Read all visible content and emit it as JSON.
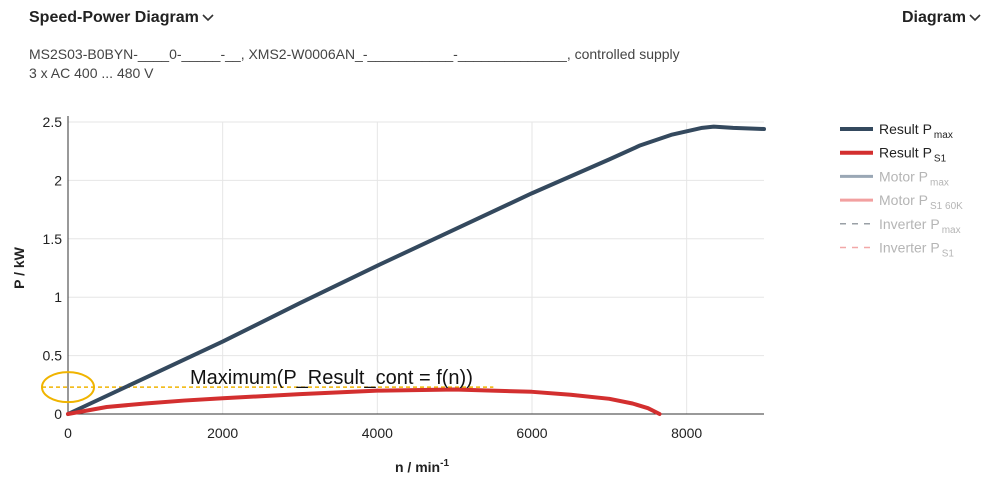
{
  "header": {
    "title": "Speed-Power Diagram",
    "right_label": "Diagram",
    "subtitle_line1": "MS2S03-B0BYN-____0-_____-__, XMS2-W0006AN_-___________-______________, controlled supply",
    "subtitle_line2": "3 x AC 400 ... 480 V"
  },
  "icons": {
    "dropdown": "chevron-down-icon"
  },
  "colors": {
    "result_pmax": "#34495e",
    "result_ps1": "#d32f2f",
    "motor_pmax": "#9aa7b5",
    "motor_ps1": "#f2a0a0",
    "inverter_pmax": "#9aa0a6",
    "inverter_ps1": "#f2a8a8",
    "annotation": "#f0b400"
  },
  "chart_data": {
    "type": "line",
    "xlabel": "n / min",
    "xlabel_sup": "-1",
    "ylabel": "P / kW",
    "xlim": [
      0,
      9000
    ],
    "ylim": [
      0,
      2.5
    ],
    "xticks": [
      0,
      2000,
      4000,
      6000,
      8000
    ],
    "yticks": [
      0,
      0.5,
      1,
      1.5,
      2,
      2.5
    ],
    "grid": true,
    "legend_position": "right",
    "series": [
      {
        "name": "Result P",
        "sub": "max",
        "visible": true,
        "x": [
          0,
          1000,
          2000,
          3000,
          4000,
          5000,
          6000,
          7000,
          7400,
          7800,
          8200,
          8350,
          8600,
          9000
        ],
        "y": [
          0,
          0.31,
          0.62,
          0.95,
          1.27,
          1.58,
          1.89,
          2.18,
          2.3,
          2.39,
          2.45,
          2.46,
          2.45,
          2.44
        ]
      },
      {
        "name": "Result P",
        "sub": "S1",
        "visible": true,
        "x": [
          0,
          500,
          1000,
          1500,
          2000,
          3000,
          4000,
          5000,
          6000,
          6500,
          7000,
          7300,
          7500,
          7650
        ],
        "y": [
          0,
          0.06,
          0.09,
          0.115,
          0.135,
          0.17,
          0.2,
          0.21,
          0.19,
          0.165,
          0.13,
          0.09,
          0.05,
          0
        ]
      },
      {
        "name": "Motor P",
        "sub": "max",
        "visible": false
      },
      {
        "name": "Motor P",
        "sub": "S1 60K",
        "visible": false
      },
      {
        "name": "Inverter P",
        "sub": "max",
        "visible": false
      },
      {
        "name": "Inverter P",
        "sub": "S1",
        "visible": false
      }
    ],
    "annotation": {
      "text": "Maximum(P_Result_cont = f(n))",
      "value_y": 0.21
    }
  }
}
